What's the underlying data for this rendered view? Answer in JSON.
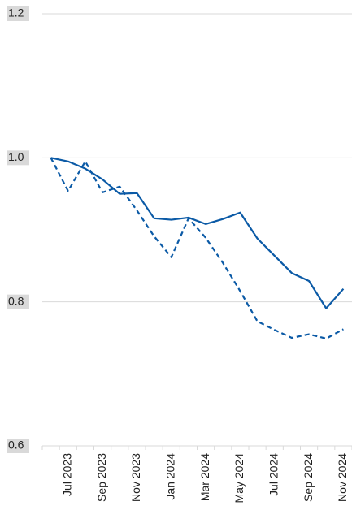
{
  "chart_data": {
    "type": "line",
    "categories": [
      null,
      "Jul 2023",
      null,
      "Sep 2023",
      null,
      "Nov 2023",
      null,
      "Jan 2024",
      null,
      "Mar 2024",
      null,
      "May 2024",
      null,
      "Jul 2024",
      null,
      "Sep 2024",
      null,
      "Nov 2024"
    ],
    "series": [
      {
        "color": "#0b5aa6",
        "dash": false,
        "values": [
          1.0,
          0.995,
          0.985,
          0.97,
          0.95,
          0.951,
          0.916,
          0.914,
          0.917,
          0.908,
          0.915,
          0.924,
          0.888,
          0.864,
          0.84,
          0.829,
          0.791,
          0.818
        ]
      },
      {
        "color": "#0b5aa6",
        "dash": true,
        "values": [
          1.0,
          0.954,
          0.995,
          0.952,
          0.96,
          0.927,
          0.891,
          0.862,
          0.916,
          0.889,
          0.854,
          0.815,
          0.773,
          0.761,
          0.75,
          0.755,
          0.749,
          0.762
        ]
      }
    ],
    "ylim": [
      0.6,
      1.2
    ],
    "yticks": [
      0.6,
      0.8,
      {
        "value": 1,
        "label": "1.0"
      },
      1.2
    ],
    "grid": true
  }
}
